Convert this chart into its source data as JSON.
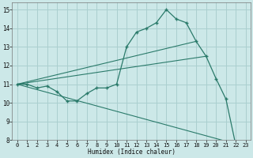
{
  "xlabel": "Humidex (Indice chaleur)",
  "bg_color": "#cce8e8",
  "grid_color": "#aacfcf",
  "line_color": "#2a7a6a",
  "xlim": [
    -0.5,
    23.5
  ],
  "ylim": [
    8,
    15.4
  ],
  "xticks": [
    0,
    1,
    2,
    3,
    4,
    5,
    6,
    7,
    8,
    9,
    10,
    11,
    12,
    13,
    14,
    15,
    16,
    17,
    18,
    19,
    20,
    21,
    22,
    23
  ],
  "yticks": [
    8,
    9,
    10,
    11,
    12,
    13,
    14,
    15
  ],
  "main_line": {
    "x": [
      0,
      1,
      2,
      3,
      4,
      5,
      6,
      7,
      8,
      9,
      10,
      11,
      12,
      13,
      14,
      15,
      16,
      17,
      18,
      19,
      20,
      21,
      22,
      23
    ],
    "y": [
      11,
      11,
      10.8,
      10.9,
      10.6,
      10.1,
      10.1,
      10.5,
      10.8,
      10.8,
      11.0,
      13.0,
      13.8,
      14.0,
      14.3,
      15.0,
      14.5,
      14.3,
      13.3,
      12.5,
      11.3,
      10.2,
      7.7,
      7.65
    ]
  },
  "straight_lines": [
    {
      "x": [
        0,
        18
      ],
      "y": [
        11,
        13.3
      ]
    },
    {
      "x": [
        0,
        19
      ],
      "y": [
        11,
        12.5
      ]
    },
    {
      "x": [
        0,
        23
      ],
      "y": [
        11,
        7.65
      ]
    }
  ]
}
